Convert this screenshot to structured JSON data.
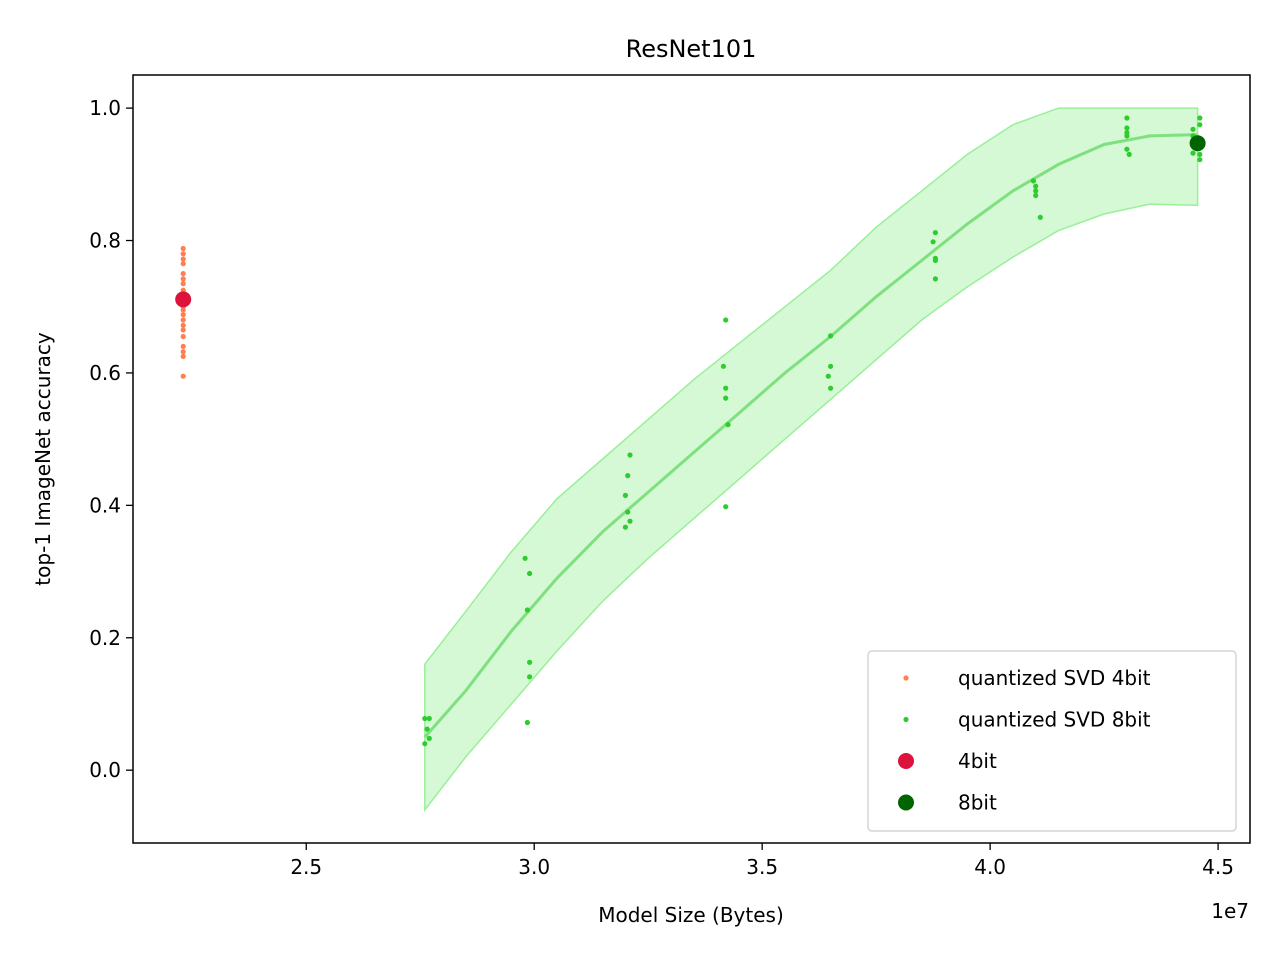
{
  "chart_data": {
    "type": "scatter",
    "title": "ResNet101",
    "xlabel": "Model Size (Bytes)",
    "ylabel": "top-1 ImageNet accuracy",
    "x_offset_label": "1e7",
    "xlim": [
      2.12,
      4.57
    ],
    "ylim": [
      -0.11,
      1.05
    ],
    "x_ticks": [
      2.5,
      3.0,
      3.5,
      4.0,
      4.5
    ],
    "x_tick_labels": [
      "2.5",
      "3.0",
      "3.5",
      "4.0",
      "4.5"
    ],
    "y_ticks": [
      0.0,
      0.2,
      0.4,
      0.6,
      0.8,
      1.0
    ],
    "y_tick_labels": [
      "0.0",
      "0.2",
      "0.4",
      "0.6",
      "0.8",
      "1.0"
    ],
    "grid": false,
    "legend_position": "lower-right",
    "series": [
      {
        "name": "quantized SVD 4bit",
        "color": "#ff7f50",
        "marker": "small-dot",
        "points": [
          [
            2.23,
            0.595
          ],
          [
            2.23,
            0.625
          ],
          [
            2.23,
            0.632
          ],
          [
            2.23,
            0.64
          ],
          [
            2.23,
            0.655
          ],
          [
            2.23,
            0.665
          ],
          [
            2.23,
            0.672
          ],
          [
            2.23,
            0.68
          ],
          [
            2.23,
            0.688
          ],
          [
            2.23,
            0.695
          ],
          [
            2.23,
            0.7
          ],
          [
            2.23,
            0.705
          ],
          [
            2.23,
            0.715
          ],
          [
            2.23,
            0.725
          ],
          [
            2.23,
            0.735
          ],
          [
            2.23,
            0.742
          ],
          [
            2.23,
            0.75
          ],
          [
            2.23,
            0.765
          ],
          [
            2.23,
            0.772
          ],
          [
            2.23,
            0.78
          ],
          [
            2.23,
            0.788
          ]
        ]
      },
      {
        "name": "quantized SVD 8bit",
        "color": "#2ecc2e",
        "marker": "small-dot",
        "points": [
          [
            2.76,
            0.04
          ],
          [
            2.765,
            0.062
          ],
          [
            2.77,
            0.048
          ],
          [
            2.76,
            0.078
          ],
          [
            2.77,
            0.078
          ],
          [
            2.98,
            0.32
          ],
          [
            2.99,
            0.297
          ],
          [
            2.985,
            0.242
          ],
          [
            2.99,
            0.163
          ],
          [
            2.99,
            0.141
          ],
          [
            2.985,
            0.072
          ],
          [
            3.2,
            0.367
          ],
          [
            3.21,
            0.376
          ],
          [
            3.205,
            0.39
          ],
          [
            3.2,
            0.415
          ],
          [
            3.205,
            0.445
          ],
          [
            3.21,
            0.476
          ],
          [
            3.42,
            0.68
          ],
          [
            3.415,
            0.61
          ],
          [
            3.42,
            0.577
          ],
          [
            3.42,
            0.562
          ],
          [
            3.425,
            0.522
          ],
          [
            3.42,
            0.398
          ],
          [
            3.65,
            0.656
          ],
          [
            3.65,
            0.61
          ],
          [
            3.645,
            0.595
          ],
          [
            3.65,
            0.577
          ],
          [
            3.88,
            0.812
          ],
          [
            3.875,
            0.798
          ],
          [
            3.88,
            0.773
          ],
          [
            3.88,
            0.77
          ],
          [
            3.88,
            0.742
          ],
          [
            4.095,
            0.89
          ],
          [
            4.1,
            0.882
          ],
          [
            4.1,
            0.875
          ],
          [
            4.1,
            0.868
          ],
          [
            4.11,
            0.835
          ],
          [
            4.3,
            0.985
          ],
          [
            4.3,
            0.97
          ],
          [
            4.3,
            0.963
          ],
          [
            4.3,
            0.958
          ],
          [
            4.3,
            0.938
          ],
          [
            4.305,
            0.93
          ],
          [
            4.445,
            0.968
          ],
          [
            4.445,
            0.958
          ],
          [
            4.445,
            0.932
          ],
          [
            4.46,
            0.985
          ],
          [
            4.46,
            0.975
          ],
          [
            4.46,
            0.93
          ],
          [
            4.46,
            0.922
          ],
          [
            4.455,
            0.95
          ]
        ]
      },
      {
        "name": "4bit",
        "color": "#dc143c",
        "marker": "large-dot",
        "points": [
          [
            2.23,
            0.711
          ]
        ]
      },
      {
        "name": "8bit",
        "color": "#006400",
        "marker": "large-dot",
        "points": [
          [
            4.455,
            0.947
          ]
        ]
      }
    ],
    "fit": {
      "color": "#7fe07f",
      "band_color": "#90ee90",
      "points": [
        [
          2.76,
          0.05
        ],
        [
          2.85,
          0.12
        ],
        [
          2.95,
          0.21
        ],
        [
          3.05,
          0.29
        ],
        [
          3.15,
          0.36
        ],
        [
          3.25,
          0.42
        ],
        [
          3.35,
          0.48
        ],
        [
          3.45,
          0.54
        ],
        [
          3.55,
          0.6
        ],
        [
          3.65,
          0.655
        ],
        [
          3.75,
          0.715
        ],
        [
          3.85,
          0.77
        ],
        [
          3.95,
          0.825
        ],
        [
          4.05,
          0.875
        ],
        [
          4.15,
          0.915
        ],
        [
          4.25,
          0.945
        ],
        [
          4.35,
          0.958
        ],
        [
          4.455,
          0.96
        ]
      ],
      "band_upper": [
        [
          2.76,
          0.16
        ],
        [
          2.85,
          0.24
        ],
        [
          2.95,
          0.33
        ],
        [
          3.05,
          0.41
        ],
        [
          3.15,
          0.47
        ],
        [
          3.25,
          0.53
        ],
        [
          3.35,
          0.59
        ],
        [
          3.45,
          0.645
        ],
        [
          3.55,
          0.7
        ],
        [
          3.65,
          0.755
        ],
        [
          3.75,
          0.82
        ],
        [
          3.85,
          0.875
        ],
        [
          3.95,
          0.93
        ],
        [
          4.05,
          0.975
        ],
        [
          4.15,
          1.0
        ],
        [
          4.25,
          1.0
        ],
        [
          4.35,
          1.0
        ],
        [
          4.455,
          1.0
        ]
      ],
      "band_lower": [
        [
          2.76,
          -0.06
        ],
        [
          2.85,
          0.02
        ],
        [
          2.95,
          0.1
        ],
        [
          3.05,
          0.18
        ],
        [
          3.15,
          0.255
        ],
        [
          3.25,
          0.32
        ],
        [
          3.35,
          0.38
        ],
        [
          3.45,
          0.44
        ],
        [
          3.55,
          0.5
        ],
        [
          3.65,
          0.56
        ],
        [
          3.75,
          0.62
        ],
        [
          3.85,
          0.68
        ],
        [
          3.95,
          0.73
        ],
        [
          4.05,
          0.775
        ],
        [
          4.15,
          0.815
        ],
        [
          4.25,
          0.84
        ],
        [
          4.35,
          0.855
        ],
        [
          4.455,
          0.853
        ]
      ]
    }
  }
}
